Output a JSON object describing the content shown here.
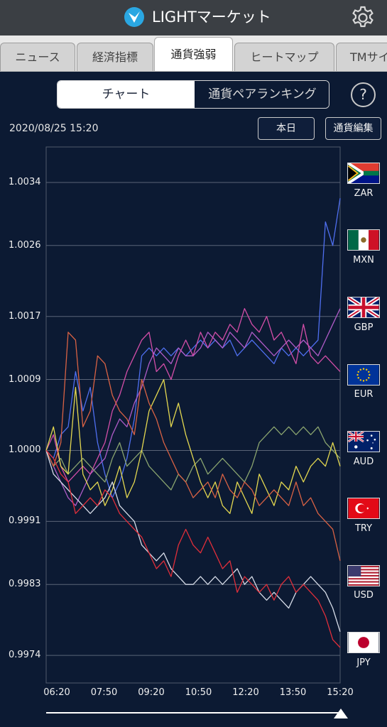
{
  "header": {
    "title": "LIGHTマーケット",
    "logo_icon": "light-logo-icon",
    "settings_icon": "gear-icon"
  },
  "tabs": [
    {
      "label": "ニュース",
      "active": false
    },
    {
      "label": "経済指標",
      "active": false
    },
    {
      "label": "通貨強弱",
      "active": true
    },
    {
      "label": "ヒートマップ",
      "active": false
    },
    {
      "label": "TMサイ",
      "active": false
    }
  ],
  "segment": {
    "chart": "チャート",
    "ranking": "通貨ペアランキング"
  },
  "help": "?",
  "toolbar": {
    "datetime": "2020/08/25 15:20",
    "today": "本日",
    "edit": "通貨編集"
  },
  "colors": {
    "ZAR": "#4f6ff0",
    "MXN": "#b05cc8",
    "GBP": "#d44ea8",
    "EUR": "#8aa46f",
    "AUD": "#e4d850",
    "TRY": "#d96244",
    "USD": "#d6dce8",
    "JPY": "#e02e3a"
  },
  "chart_data": {
    "type": "line",
    "x_ticks": [
      "06:20",
      "07:50",
      "09:20",
      "10:50",
      "12:20",
      "13:50",
      "15:20"
    ],
    "y_ticks": [
      "1.0034",
      "1.0026",
      "1.0017",
      "1.0009",
      "1.0000",
      "0.9991",
      "0.9983",
      "0.9974"
    ],
    "y_tick_values": [
      1.0034,
      1.0026,
      1.0017,
      1.0009,
      1.0,
      0.9991,
      0.9983,
      0.9974
    ],
    "ylim": [
      0.99705,
      1.00385
    ],
    "grid": true,
    "legend_position": "right",
    "series": [
      {
        "name": "ZAR",
        "values": [
          1.0,
          0.9999,
          1.0002,
          1.0003,
          1.001,
          1.0005,
          1.0008,
          1.0001,
          0.9997,
          0.9994,
          0.9996,
          0.9999,
          1.0004,
          1.0012,
          1.0013,
          1.0012,
          1.0013,
          1.0012,
          1.0013,
          1.0012,
          1.0013,
          1.0014,
          1.0013,
          1.0014,
          1.0013,
          1.0014,
          1.0012,
          1.0013,
          1.0014,
          1.0013,
          1.0012,
          1.0011,
          1.0013,
          1.0012,
          1.0013,
          1.0012,
          1.0013,
          1.0014,
          1.0029,
          1.0026,
          1.0032
        ]
      },
      {
        "name": "MXN",
        "values": [
          1.0,
          0.9998,
          0.9996,
          0.9994,
          0.9993,
          0.9995,
          0.9997,
          0.9998,
          0.9999,
          1.0002,
          1.0004,
          1.0003,
          1.0006,
          1.0008,
          1.0011,
          1.0013,
          1.0012,
          1.0011,
          1.0013,
          1.0012,
          1.0012,
          1.0013,
          1.0015,
          1.0014,
          1.0013,
          1.0015,
          1.0014,
          1.0013,
          1.0015,
          1.0014,
          1.0013,
          1.0012,
          1.0013,
          1.0014,
          1.0013,
          1.0014,
          1.0013,
          1.0012,
          1.0014,
          1.0016,
          1.0018
        ]
      },
      {
        "name": "GBP",
        "values": [
          1.0,
          1.0002,
          0.9998,
          0.9996,
          0.9997,
          0.9998,
          0.9997,
          0.9999,
          1.0001,
          1.0005,
          1.0007,
          1.001,
          1.0012,
          1.0014,
          1.0015,
          1.001,
          1.0011,
          1.0009,
          1.0012,
          1.0014,
          1.0012,
          1.0015,
          1.0013,
          1.0015,
          1.0014,
          1.0016,
          1.0015,
          1.0018,
          1.0016,
          1.0015,
          1.0017,
          1.0014,
          1.0015,
          1.0013,
          1.0011,
          1.0016,
          1.0012,
          1.0011,
          1.0012,
          1.0011,
          1.001
        ]
      },
      {
        "name": "EUR",
        "values": [
          1.0,
          0.9998,
          0.9999,
          0.9997,
          0.9998,
          0.9999,
          0.9998,
          0.9997,
          0.9996,
          0.9999,
          1.0001,
          0.9998,
          0.9999,
          1.0,
          0.9998,
          0.9997,
          0.9996,
          0.9995,
          0.9997,
          0.9996,
          0.9998,
          0.9999,
          0.9997,
          0.9998,
          0.9999,
          0.9998,
          0.9997,
          0.9996,
          0.9998,
          1.0001,
          1.0002,
          1.0003,
          1.0002,
          1.0003,
          1.0002,
          1.0003,
          1.0002,
          1.0003,
          1.0001,
          1.0,
          0.9999
        ]
      },
      {
        "name": "AUD",
        "values": [
          1.0,
          1.0003,
          0.9998,
          0.9997,
          1.0008,
          0.9997,
          0.9995,
          0.9996,
          0.9993,
          0.9995,
          0.9998,
          0.9994,
          0.9996,
          1.0,
          1.0005,
          1.0007,
          1.0009,
          1.0003,
          1.0006,
          1.0002,
          0.9999,
          0.9996,
          0.9994,
          0.9996,
          0.9993,
          0.9992,
          0.9996,
          0.9994,
          0.9992,
          0.9997,
          0.9995,
          0.9993,
          0.9996,
          0.9995,
          0.9998,
          0.9996,
          0.9998,
          0.9999,
          0.9998,
          1.0001,
          0.9998
        ]
      },
      {
        "name": "TRY",
        "values": [
          1.0,
          0.9998,
          1.0001,
          1.0015,
          1.0014,
          1.0003,
          1.0005,
          1.0012,
          1.0011,
          1.0007,
          1.0005,
          1.0004,
          1.0002,
          1.0009,
          1.0006,
          1.0004,
          1.0001,
          0.9999,
          0.9997,
          0.9996,
          0.9994,
          0.9995,
          0.9996,
          0.9994,
          0.9997,
          0.9995,
          0.9994,
          0.9996,
          0.9995,
          0.9993,
          0.9994,
          0.9995,
          0.9994,
          0.9993,
          0.9996,
          0.9993,
          0.9994,
          0.9992,
          0.9991,
          0.999,
          0.9986
        ]
      },
      {
        "name": "USD",
        "values": [
          1.0,
          0.9997,
          0.9996,
          0.9995,
          0.9994,
          0.9993,
          0.9992,
          0.9993,
          0.9994,
          0.9996,
          0.9993,
          0.9992,
          0.9991,
          0.9988,
          0.9987,
          0.9986,
          0.9987,
          0.9985,
          0.9984,
          0.9983,
          0.9983,
          0.9984,
          0.9983,
          0.9984,
          0.9983,
          0.9984,
          0.9985,
          0.9983,
          0.9984,
          0.9982,
          0.9981,
          0.9982,
          0.9981,
          0.998,
          0.9982,
          0.9983,
          0.9984,
          0.9983,
          0.9982,
          0.998,
          0.9977
        ]
      },
      {
        "name": "JPY",
        "values": [
          1.0,
          0.9999,
          0.9997,
          0.9996,
          0.9992,
          0.9993,
          0.9994,
          0.9993,
          0.9995,
          0.9994,
          0.9992,
          0.9991,
          0.999,
          0.9989,
          0.9987,
          0.9985,
          0.9986,
          0.9984,
          0.9988,
          0.999,
          0.9988,
          0.9987,
          0.9989,
          0.9987,
          0.9985,
          0.9986,
          0.9982,
          0.9984,
          0.9983,
          0.9982,
          0.9983,
          0.9981,
          0.9983,
          0.9984,
          0.9982,
          0.9983,
          0.9982,
          0.9981,
          0.9979,
          0.9976,
          0.9975
        ]
      }
    ]
  },
  "legend": [
    {
      "code": "ZAR",
      "flag_icon": "south-africa-flag-icon"
    },
    {
      "code": "MXN",
      "flag_icon": "mexico-flag-icon"
    },
    {
      "code": "GBP",
      "flag_icon": "uk-flag-icon"
    },
    {
      "code": "EUR",
      "flag_icon": "eu-flag-icon"
    },
    {
      "code": "AUD",
      "flag_icon": "australia-flag-icon"
    },
    {
      "code": "TRY",
      "flag_icon": "turkey-flag-icon"
    },
    {
      "code": "USD",
      "flag_icon": "usa-flag-icon"
    },
    {
      "code": "JPY",
      "flag_icon": "japan-flag-icon"
    }
  ]
}
